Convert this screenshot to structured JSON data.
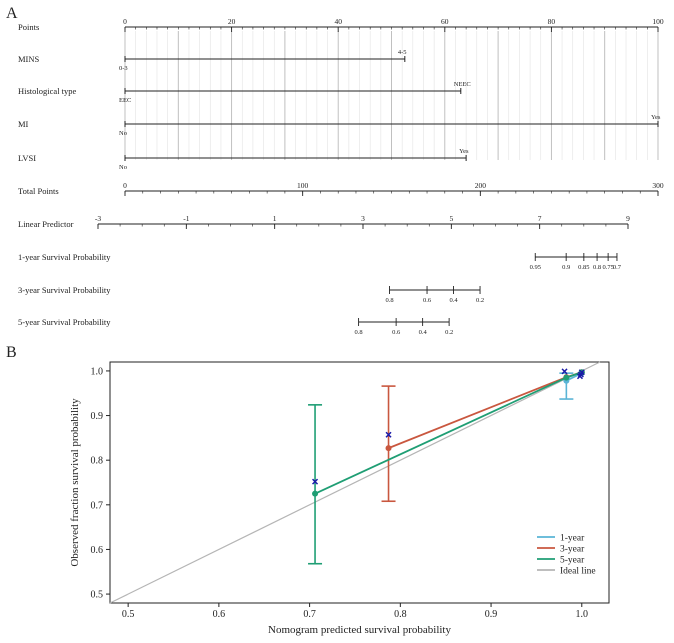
{
  "chart_data": [
    {
      "type": "nomogram",
      "panel_label": "A",
      "rows": [
        {
          "label": "Points",
          "kind": "axis",
          "min": 0,
          "max": 100,
          "ticks": [
            "0",
            "20",
            "40",
            "60",
            "80",
            "100"
          ],
          "tick_values": [
            0,
            20,
            40,
            60,
            80,
            100
          ]
        },
        {
          "label": "MINS",
          "kind": "factor",
          "levels": [
            {
              "name": "0-3",
              "points": 0
            },
            {
              "name": "4-5",
              "points": 52.5
            }
          ]
        },
        {
          "label": "Histological type",
          "kind": "factor",
          "levels": [
            {
              "name": "EEC",
              "points": 0
            },
            {
              "name": "NEEC",
              "points": 63
            }
          ]
        },
        {
          "label": "MI",
          "kind": "factor",
          "levels": [
            {
              "name": "No",
              "points": 0
            },
            {
              "name": "Yes",
              "points": 100
            }
          ]
        },
        {
          "label": "LVSI",
          "kind": "factor",
          "levels": [
            {
              "name": "No",
              "points": 0
            },
            {
              "name": "Yes",
              "points": 64
            }
          ]
        },
        {
          "label": "Total Points",
          "kind": "axis",
          "min": 0,
          "max": 300,
          "ticks": [
            "0",
            "100",
            "200",
            "300"
          ],
          "tick_values": [
            0,
            100,
            200,
            300
          ]
        },
        {
          "label": "Linear Predictor",
          "kind": "axis",
          "min": -3,
          "max": 9,
          "ticks": [
            "-3",
            "-1",
            "1",
            "3",
            "5",
            "7",
            "9"
          ],
          "tick_values": [
            -3,
            -1,
            1,
            3,
            5,
            7,
            9
          ]
        },
        {
          "label": "1-year Survival Probability",
          "kind": "prob",
          "ticks": [
            "0.95",
            "0.9",
            "0.85",
            "0.8",
            "0.75",
            "0.7"
          ],
          "lp_positions": [
            6.9,
            7.6,
            8.0,
            8.3,
            8.55,
            8.75
          ]
        },
        {
          "label": "3-year Survival Probability",
          "kind": "prob",
          "ticks": [
            "0.8",
            "0.6",
            "0.4",
            "0.2"
          ],
          "lp_positions": [
            3.6,
            4.45,
            5.05,
            5.65
          ]
        },
        {
          "label": "5-year Survival Probability",
          "kind": "prob",
          "ticks": [
            "0.8",
            "0.6",
            "0.4",
            "0.2"
          ],
          "lp_positions": [
            2.9,
            3.75,
            4.35,
            4.95
          ]
        }
      ]
    },
    {
      "type": "calibration",
      "panel_label": "B",
      "xlabel": "Nomogram predicted survival probability",
      "ylabel": "Observed fraction survival probability",
      "xlim": [
        0.48,
        1.03
      ],
      "ylim": [
        0.48,
        1.02
      ],
      "xticks": [
        "0.5",
        "0.6",
        "0.7",
        "0.8",
        "0.9",
        "1.0"
      ],
      "xtick_values": [
        0.5,
        0.6,
        0.7,
        0.8,
        0.9,
        1.0
      ],
      "yticks": [
        "0.5",
        "0.6",
        "0.7",
        "0.8",
        "0.9",
        "1.0"
      ],
      "ytick_values": [
        0.5,
        0.6,
        0.7,
        0.8,
        0.9,
        1.0
      ],
      "series": [
        {
          "name": "1-year",
          "color": "#5ab4d6",
          "x": [
            0.983,
            1.0
          ],
          "y": [
            0.978,
            0.995
          ],
          "lower": [
            0.937,
            0.99
          ],
          "upper": [
            0.995,
            1.0
          ]
        },
        {
          "name": "3-year",
          "color": "#c9573f",
          "x": [
            0.787,
            0.983,
            1.0
          ],
          "y": [
            0.827,
            0.986,
            0.997
          ],
          "lower": [
            0.708,
            0.97,
            0.99
          ],
          "upper": [
            0.966,
            0.998,
            1.0
          ]
        },
        {
          "name": "5-year",
          "color": "#1f9e74",
          "x": [
            0.706,
            0.983,
            1.0
          ],
          "y": [
            0.725,
            0.985,
            0.997
          ],
          "lower": [
            0.568,
            0.97,
            0.99
          ],
          "upper": [
            0.924,
            0.998,
            1.0
          ]
        },
        {
          "name": "Ideal line",
          "color": "#b5b5b5"
        }
      ],
      "ci_series": [
        {
          "color": "#c9573f",
          "x": 0.787,
          "lower": 0.708,
          "upper": 0.966
        },
        {
          "color": "#1f9e74",
          "x": 0.706,
          "lower": 0.568,
          "upper": 0.924
        },
        {
          "color": "#5ab4d6",
          "x": 0.983,
          "lower": 0.937,
          "upper": 0.995
        }
      ],
      "observed_markers": {
        "color": "#1a1aa8",
        "x": [
          0.706,
          0.787,
          0.981,
          0.998,
          0.999,
          1.0
        ],
        "y": [
          0.752,
          0.857,
          0.999,
          0.988,
          0.992,
          0.997
        ]
      }
    }
  ]
}
